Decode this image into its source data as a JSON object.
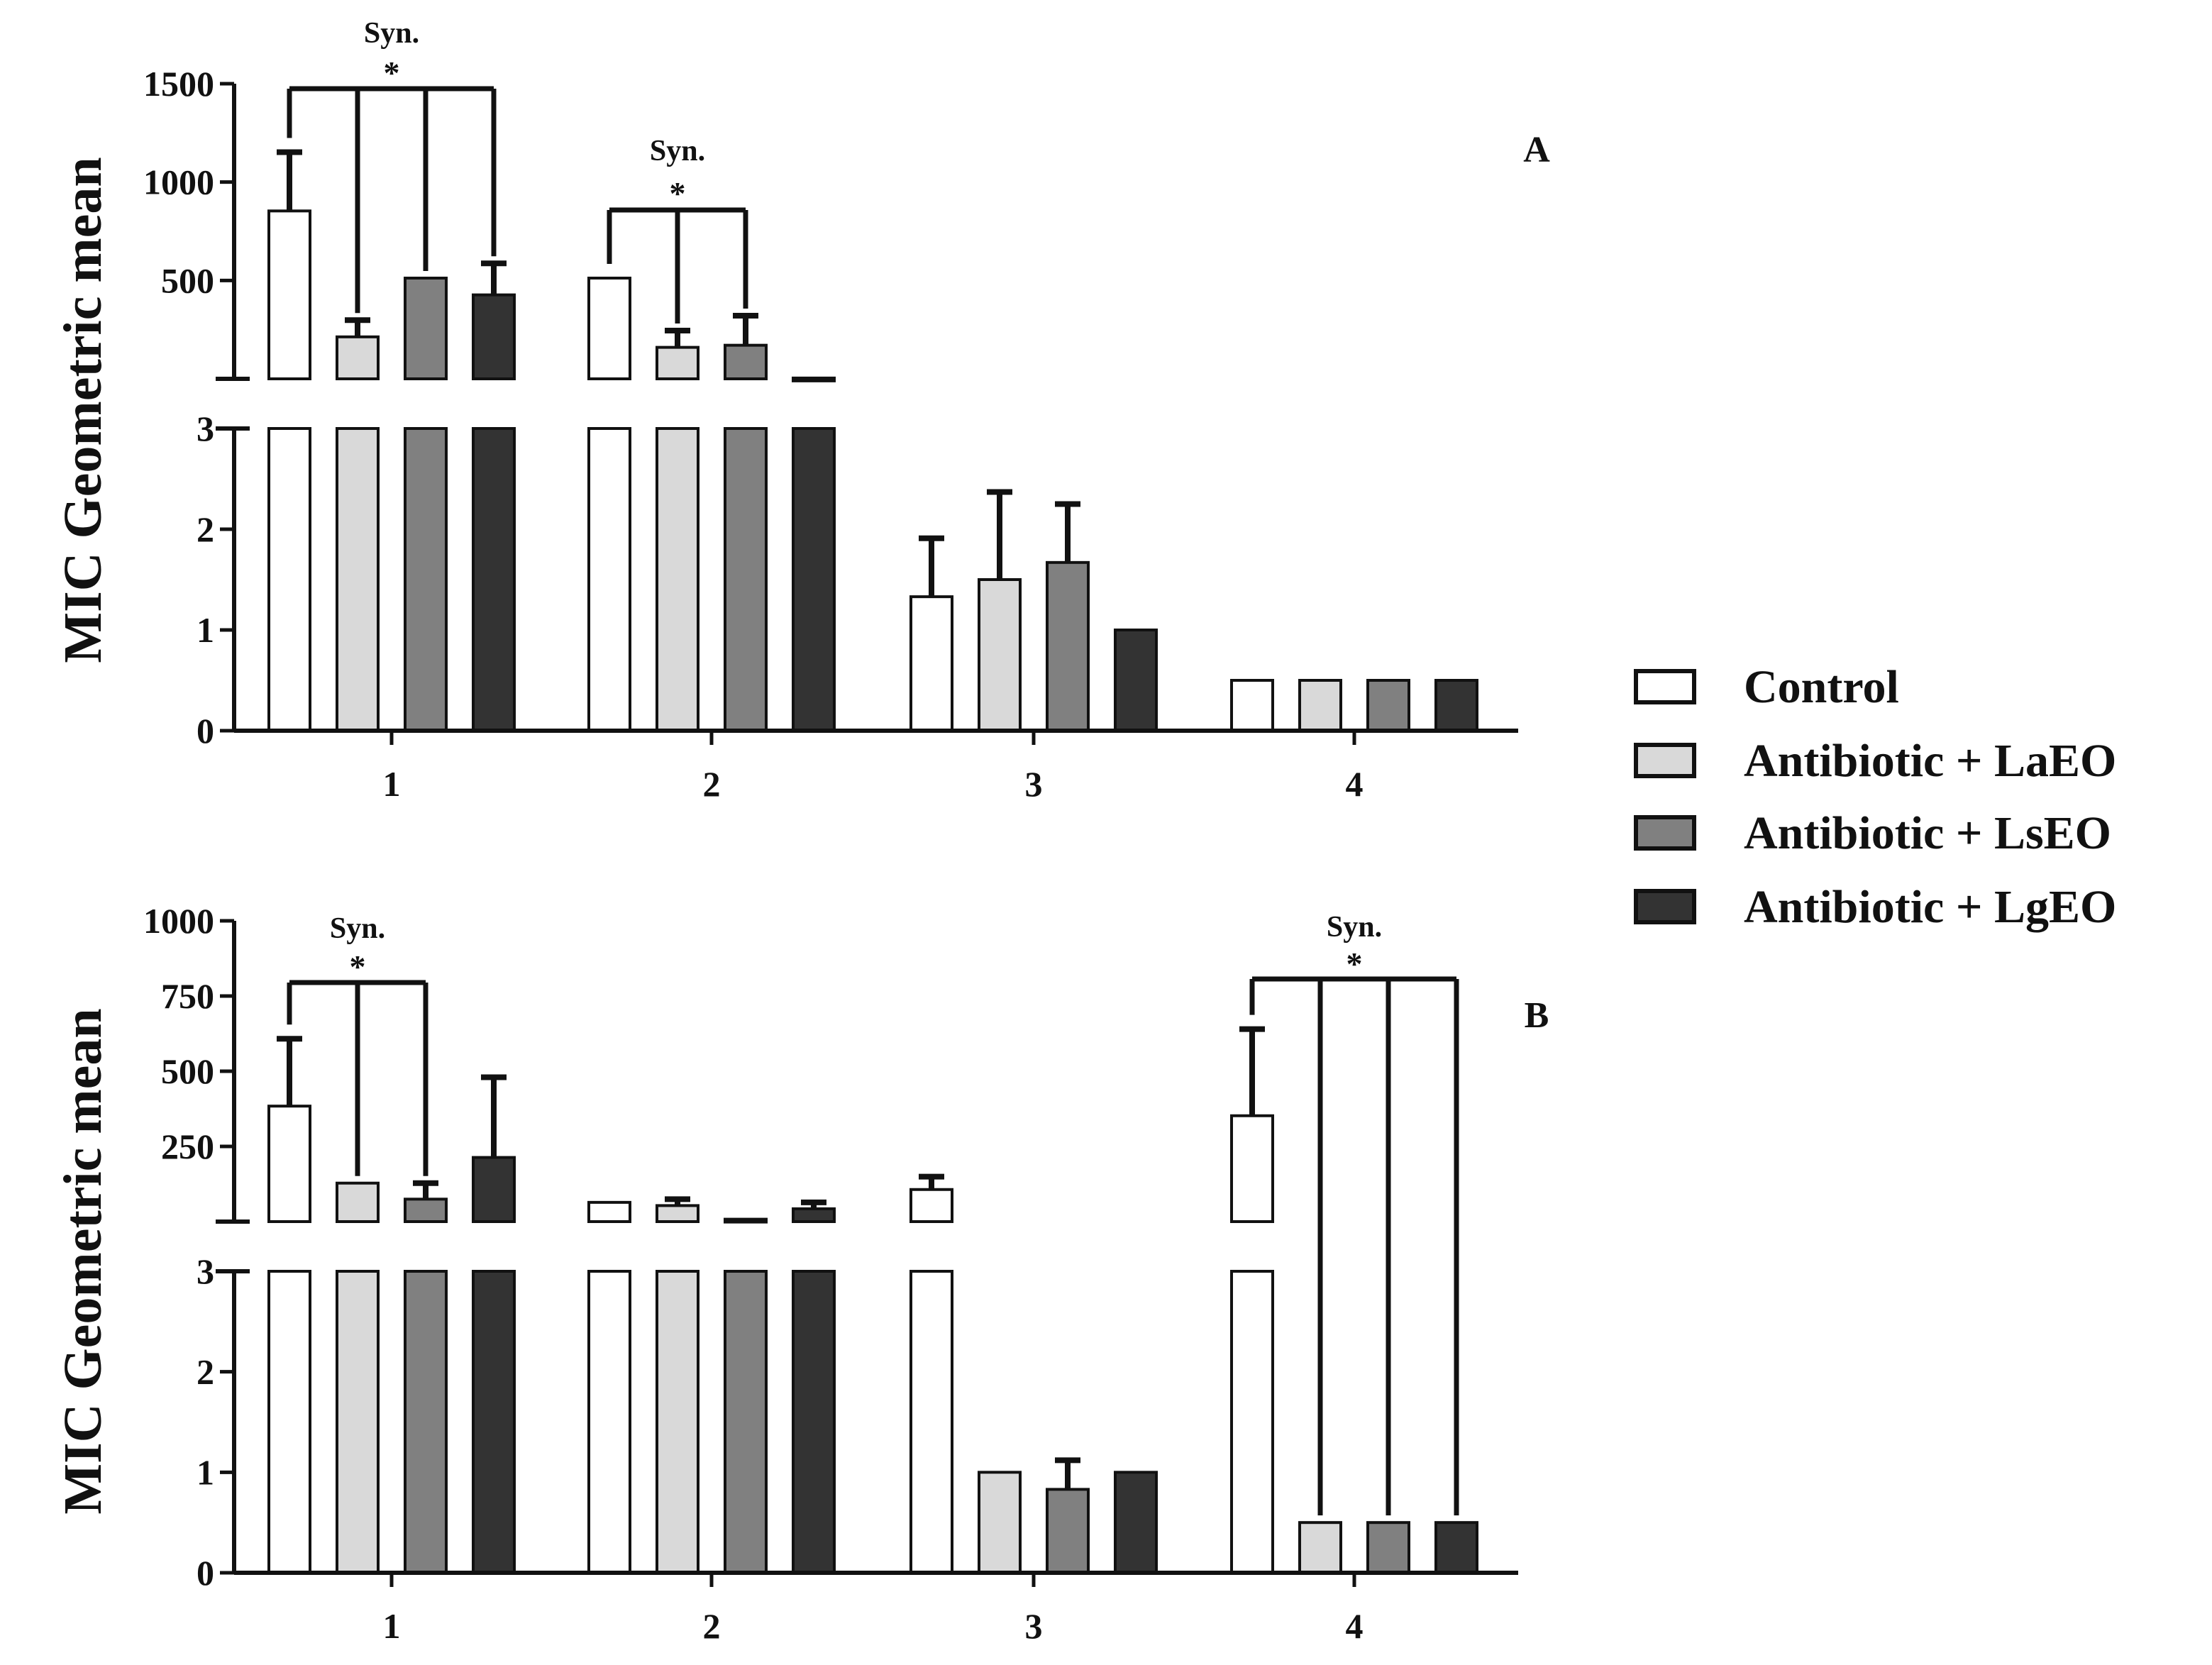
{
  "chart_data": [
    {
      "type": "bar",
      "panel_label": "A",
      "ylabel": "MIC Geometric mean",
      "xlabel": "",
      "categories": [
        "1",
        "2",
        "3",
        "4"
      ],
      "axis_break": {
        "lower_ylim": [
          0,
          3
        ],
        "lower_ticks": [
          "0",
          "1",
          "2",
          "3"
        ],
        "upper_ylim": [
          0,
          1500
        ],
        "upper_ticks": [
          "500",
          "1000",
          "1500"
        ]
      },
      "series": [
        {
          "name": "Control",
          "color": "#ffffff",
          "values": [
            853.3,
            512,
            1.33,
            0.5
          ],
          "errors": [
            298.7,
            0,
            0.58,
            0
          ]
        },
        {
          "name": "Antibiotic + LaEO",
          "color": "#d9d9d9",
          "values": [
            213.3,
            160,
            1.5,
            0.5
          ],
          "errors": [
            85.3,
            85.3,
            0.87,
            0
          ]
        },
        {
          "name": "Antibiotic + LsEO",
          "color": "#808080",
          "values": [
            512,
            170.7,
            1.67,
            0.5
          ],
          "errors": [
            0,
            150,
            0.58,
            0
          ]
        },
        {
          "name": "Antibiotic + LgEO",
          "color": "#333333",
          "values": [
            426.7,
            4,
            1.0,
            0.5
          ],
          "errors": [
            160,
            0,
            0,
            0
          ]
        }
      ],
      "annotations": [
        {
          "category": "1",
          "text": "Syn.",
          "marker": "*"
        },
        {
          "category": "2",
          "text": "Syn.",
          "marker": "*"
        }
      ]
    },
    {
      "type": "bar",
      "panel_label": "B",
      "ylabel": "MIC Geometric mean",
      "xlabel": "",
      "categories": [
        "1",
        "2",
        "3",
        "4"
      ],
      "axis_break": {
        "lower_ylim": [
          0,
          3
        ],
        "lower_ticks": [
          "0",
          "1",
          "2",
          "3"
        ],
        "upper_ylim": [
          0,
          1000
        ],
        "upper_ticks": [
          "250",
          "500",
          "750",
          "1000"
        ]
      },
      "series": [
        {
          "name": "Control",
          "color": "#ffffff",
          "values": [
            384,
            64,
            106.7,
            352
          ],
          "errors": [
            224,
            0,
            42.7,
            288
          ]
        },
        {
          "name": "Antibiotic + LaEO",
          "color": "#d9d9d9",
          "values": [
            128,
            53.3,
            1.0,
            0.5
          ],
          "errors": [
            0,
            21.3,
            0,
            0
          ]
        },
        {
          "name": "Antibiotic + LsEO",
          "color": "#808080",
          "values": [
            74.7,
            8,
            0.83,
            0.5
          ],
          "errors": [
            53.3,
            0,
            0.29,
            0
          ]
        },
        {
          "name": "Antibiotic + LgEO",
          "color": "#333333",
          "values": [
            213.3,
            42.7,
            1.0,
            0.5
          ],
          "errors": [
            266.7,
            21.3,
            0,
            0
          ]
        }
      ],
      "annotations": [
        {
          "category": "1",
          "text": "Syn.",
          "marker": "*"
        },
        {
          "category": "4",
          "text": "Syn.",
          "marker": "*"
        }
      ]
    }
  ],
  "legend": {
    "items": [
      {
        "label": "Control",
        "color": "#ffffff"
      },
      {
        "label": "Antibiotic + LaEO",
        "color": "#d9d9d9"
      },
      {
        "label": "Antibiotic + LsEO",
        "color": "#808080"
      },
      {
        "label": "Antibiotic + LgEO",
        "color": "#333333"
      }
    ]
  }
}
